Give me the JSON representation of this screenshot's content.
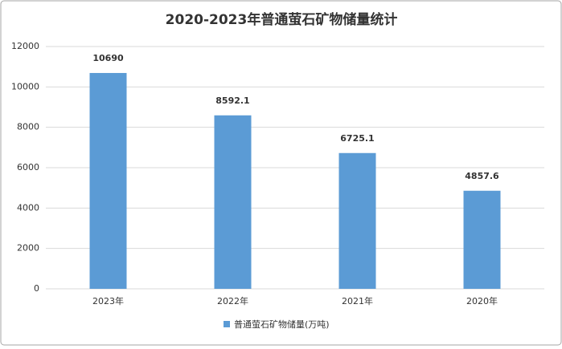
{
  "chart_data": {
    "type": "bar",
    "title": "2020-2023年普通萤石矿物储量统计",
    "categories": [
      "2023年",
      "2022年",
      "2021年",
      "2020年"
    ],
    "series": [
      {
        "name": "普通萤石矿物储量(万吨)",
        "color": "#5b9bd5",
        "values": [
          10690,
          8592.1,
          6725.1,
          4857.6
        ]
      }
    ],
    "ylim": [
      0,
      12000
    ],
    "yticks": [
      0,
      2000,
      4000,
      6000,
      8000,
      10000,
      12000
    ],
    "grid": true,
    "legend": "bottom"
  }
}
